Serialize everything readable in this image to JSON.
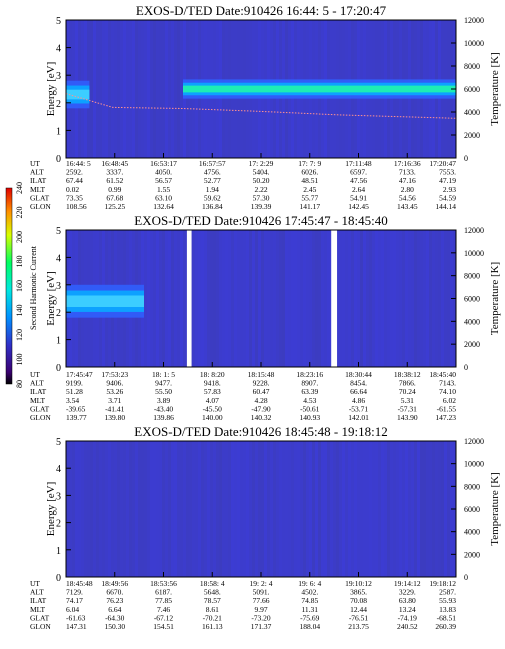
{
  "chart_data": [
    {
      "type": "heatmap",
      "title": "EXOS-D/TED   Date:910426  16:44: 5 - 17:20:47",
      "ylabel": "Energy [eV]",
      "y2label": "Temperature [K]",
      "ylim": [
        0,
        5
      ],
      "y2lim": [
        0,
        12000
      ],
      "yticks": [
        "0",
        "1",
        "2",
        "3",
        "4",
        "5"
      ],
      "y2ticks": [
        "0",
        "2000",
        "4000",
        "6000",
        "8000",
        "10000",
        "12000"
      ],
      "orbit_rows": [
        "UT",
        "ALT",
        "ILAT",
        "MLT",
        "GLAT",
        "GLON"
      ],
      "orbit_columns": [
        [
          "16:44: 5",
          "2592.",
          "67.44",
          "0.02",
          "73.35",
          "108.56"
        ],
        [
          "16:48:45",
          "3337.",
          "61.52",
          "0.99",
          "67.68",
          "125.25"
        ],
        [
          "16:53:17",
          "4050.",
          "56.57",
          "1.55",
          "63.10",
          "132.64"
        ],
        [
          "16:57:57",
          "4756.",
          "52.77",
          "1.94",
          "59.62",
          "136.84"
        ],
        [
          "17: 2:29",
          "5404.",
          "50.20",
          "2.22",
          "57.30",
          "139.39"
        ],
        [
          "17: 7: 9",
          "6026.",
          "48.51",
          "2.45",
          "55.77",
          "141.17"
        ],
        [
          "17:11:48",
          "6597.",
          "47.56",
          "2.64",
          "54.91",
          "142.45"
        ],
        [
          "17:16:36",
          "7133.",
          "47.16",
          "2.80",
          "54.56",
          "143.45"
        ],
        [
          "17:20:47",
          "7553.",
          "47.19",
          "2.93",
          "54.59",
          "144.14"
        ]
      ],
      "features": [
        {
          "energy": 2.3,
          "width": 0.5,
          "start": 0.0,
          "end": 0.06,
          "level": 0.55
        },
        {
          "energy": 2.5,
          "width": 0.35,
          "start": 0.3,
          "end": 1.0,
          "level": 0.9
        }
      ],
      "temperature_trace": [
        {
          "x": 0.0,
          "y": 5600
        },
        {
          "x": 0.12,
          "y": 4400
        },
        {
          "x": 0.3,
          "y": 4300
        },
        {
          "x": 0.5,
          "y": 4050
        },
        {
          "x": 0.7,
          "y": 3750
        },
        {
          "x": 1.0,
          "y": 3450
        }
      ]
    },
    {
      "type": "heatmap",
      "title": "EXOS-D/TED   Date:910426  17:45:47 - 18:45:40",
      "ylabel": "Energy [eV]",
      "y2label": "Temperature [K]",
      "ylim": [
        0,
        5
      ],
      "y2lim": [
        0,
        12000
      ],
      "yticks": [
        "0",
        "1",
        "2",
        "3",
        "4",
        "5"
      ],
      "y2ticks": [
        "0",
        "2000",
        "4000",
        "6000",
        "8000",
        "10000",
        "12000"
      ],
      "orbit_rows": [
        "UT",
        "ALT",
        "ILAT",
        "MLT",
        "GLAT",
        "GLON"
      ],
      "orbit_columns": [
        [
          "17:45:47",
          "9199.",
          "51.28",
          "3.54",
          "-39.65",
          "139.77"
        ],
        [
          "17:53:23",
          "9406.",
          "53.26",
          "3.71",
          "-41.41",
          "139.80"
        ],
        [
          "18: 1: 5",
          "9477.",
          "55.50",
          "3.89",
          "-43.40",
          "139.86"
        ],
        [
          "18: 8:20",
          "9418.",
          "57.83",
          "4.07",
          "-45.50",
          "140.00"
        ],
        [
          "18:15:48",
          "9228.",
          "60.47",
          "4.28",
          "-47.90",
          "140.32"
        ],
        [
          "18:23:16",
          "8907.",
          "63.39",
          "4.53",
          "-50.61",
          "140.93"
        ],
        [
          "18:30:44",
          "8454.",
          "66.64",
          "4.86",
          "-53.71",
          "142.01"
        ],
        [
          "18:38:12",
          "7866.",
          "70.24",
          "5.31",
          "-57.31",
          "143.90"
        ],
        [
          "18:45:40",
          "7143.",
          "74.10",
          "6.02",
          "-61.55",
          "147.23"
        ]
      ],
      "features": [
        {
          "energy": 2.4,
          "width": 0.6,
          "start": 0.0,
          "end": 0.2,
          "level": 0.45
        }
      ],
      "gaps": [
        0.31,
        0.35,
        0.68,
        0.73
      ]
    },
    {
      "type": "heatmap",
      "title": "EXOS-D/TED   Date:910426  18:45:48 - 19:18:12",
      "ylabel": "Energy [eV]",
      "y2label": "Temperature [K]",
      "ylim": [
        0,
        5
      ],
      "y2lim": [
        0,
        12000
      ],
      "yticks": [
        "0",
        "1",
        "2",
        "3",
        "4",
        "5"
      ],
      "y2ticks": [
        "0",
        "2000",
        "4000",
        "6000",
        "8000",
        "10000",
        "12000"
      ],
      "orbit_rows": [
        "UT",
        "ALT",
        "ILAT",
        "MLT",
        "GLAT",
        "GLON"
      ],
      "orbit_columns": [
        [
          "18:45:48",
          "7129.",
          "74.17",
          "6.04",
          "-61.63",
          "147.31"
        ],
        [
          "18:49:56",
          "6670.",
          "76.23",
          "6.64",
          "-64.30",
          "150.30"
        ],
        [
          "18:53:56",
          "6187.",
          "77.85",
          "7.46",
          "-67.12",
          "154.51"
        ],
        [
          "18:58: 4",
          "5648.",
          "78.57",
          "8.61",
          "-70.21",
          "161.13"
        ],
        [
          "19: 2: 4",
          "5091.",
          "77.66",
          "9.97",
          "-73.20",
          "171.37"
        ],
        [
          "19: 6: 4",
          "4502.",
          "74.85",
          "11.31",
          "-75.69",
          "188.04"
        ],
        [
          "19:10:12",
          "3865.",
          "70.08",
          "12.44",
          "-76.51",
          "213.75"
        ],
        [
          "19:14:12",
          "3229.",
          "63.80",
          "13.24",
          "-74.19",
          "240.52"
        ],
        [
          "19:18:12",
          "2587.",
          "55.93",
          "13.83",
          "-68.51",
          "260.39"
        ]
      ],
      "features": []
    }
  ],
  "colorbar": {
    "label": "Second Harmonic Current",
    "ticks": [
      "80",
      "100",
      "120",
      "140",
      "160",
      "180",
      "200",
      "220",
      "240"
    ]
  }
}
